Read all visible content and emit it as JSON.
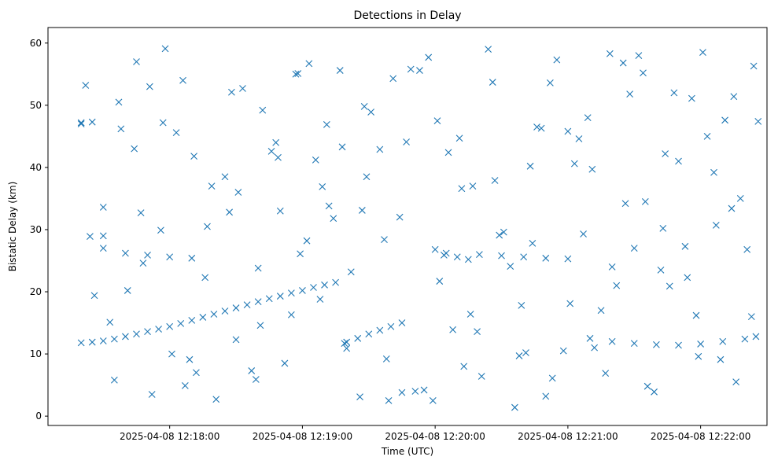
{
  "chart_data": {
    "type": "scatter",
    "title": "Detections in Delay",
    "xlabel": "Time (UTC)",
    "ylabel": "Bistatic Delay (km)",
    "x_unit": "UTC time",
    "x_tick_labels": [
      "2025-04-08 12:18:00",
      "2025-04-08 12:19:00",
      "2025-04-08 12:20:00",
      "2025-04-08 12:21:00",
      "2025-04-08 12:22:00"
    ],
    "x_ticks": [
      "12:18:00",
      "12:19:00",
      "12:20:00",
      "12:21:00",
      "12:22:00"
    ],
    "xlim": [
      "12:17:05",
      "12:22:30"
    ],
    "y_ticks": [
      0,
      10,
      20,
      30,
      40,
      50,
      60
    ],
    "ylim": [
      -1.5,
      62.5
    ],
    "marker": "x",
    "color": "#1f77b4",
    "grid": false,
    "legend": false,
    "series": [
      {
        "x": [
          "12:17:20",
          "12:17:25",
          "12:17:30",
          "12:17:35",
          "12:17:40",
          "12:17:45",
          "12:17:50",
          "12:17:55",
          "12:18:00",
          "12:18:05",
          "12:18:10",
          "12:18:15",
          "12:18:20",
          "12:18:25",
          "12:18:30",
          "12:18:35",
          "12:18:40",
          "12:18:45",
          "12:18:50",
          "12:18:55",
          "12:19:00",
          "12:19:05",
          "12:19:10",
          "12:19:15",
          "12:19:20",
          "12:19:25",
          "12:19:30",
          "12:19:35",
          "12:19:40",
          "12:19:45",
          "12:17:20",
          "12:17:30",
          "12:17:40",
          "12:17:50",
          "12:18:00",
          "12:18:10",
          "12:20:20",
          "12:20:30",
          "12:20:40",
          "12:20:50",
          "12:21:00",
          "12:21:10",
          "12:21:20",
          "12:21:30",
          "12:21:40",
          "12:21:50",
          "12:22:00",
          "12:22:10",
          "12:22:20",
          "12:22:25",
          "12:20:00",
          "12:20:05",
          "12:20:10",
          "12:20:15",
          "12:17:20",
          "12:17:25",
          "12:17:30",
          "12:17:22",
          "12:17:35",
          "12:17:45",
          "12:17:52",
          "12:18:03",
          "12:18:12",
          "12:18:25",
          "12:18:33",
          "12:18:41",
          "12:18:50",
          "12:18:58",
          "12:19:06",
          "12:19:14",
          "12:19:22",
          "12:19:31",
          "12:19:39",
          "12:19:47",
          "12:19:55",
          "12:20:04",
          "12:20:12",
          "12:20:21",
          "12:20:29",
          "12:20:38",
          "12:20:46",
          "12:20:55",
          "12:21:03",
          "12:21:12",
          "12:21:20",
          "12:21:28",
          "12:21:36",
          "12:21:44",
          "12:21:53",
          "12:22:01",
          "12:22:09",
          "12:22:18",
          "12:22:24",
          "12:17:26",
          "12:17:38",
          "12:17:48",
          "12:17:58",
          "12:18:07",
          "12:18:17",
          "12:18:28",
          "12:18:37",
          "12:18:46",
          "12:18:55",
          "12:19:03",
          "12:19:12",
          "12:19:20",
          "12:19:28",
          "12:19:37",
          "12:19:45",
          "12:19:53",
          "12:20:02",
          "12:20:11",
          "12:20:19",
          "12:20:27",
          "12:20:36",
          "12:20:44",
          "12:20:52",
          "12:21:01",
          "12:21:09",
          "12:21:17",
          "12:21:26",
          "12:21:34",
          "12:21:42",
          "12:21:50",
          "12:21:59",
          "12:22:07",
          "12:22:15",
          "12:22:23",
          "12:17:30",
          "12:17:41",
          "12:17:51",
          "12:18:01",
          "12:18:11",
          "12:18:21",
          "12:18:31",
          "12:18:42",
          "12:18:52",
          "12:19:02",
          "12:19:11",
          "12:19:19",
          "12:19:29",
          "12:19:41",
          "12:19:51",
          "12:20:01",
          "12:20:13",
          "12:20:24",
          "12:20:34",
          "12:20:43",
          "12:20:53",
          "12:21:05",
          "12:21:15",
          "12:21:25",
          "12:21:35",
          "12:21:46",
          "12:21:56",
          "12:22:06",
          "12:22:16",
          "12:17:33",
          "12:17:44",
          "12:17:56",
          "12:18:06",
          "12:18:16",
          "12:18:27",
          "12:18:39",
          "12:18:48",
          "12:18:59",
          "12:19:09",
          "12:19:17",
          "12:19:26",
          "12:19:35",
          "12:19:44",
          "12:19:57",
          "12:20:08",
          "12:20:17",
          "12:20:26",
          "12:20:39",
          "12:20:48",
          "12:20:58",
          "12:21:07",
          "12:21:19",
          "12:21:30",
          "12:21:39",
          "12:21:48",
          "12:21:58",
          "12:22:11",
          "12:22:21",
          "12:17:24",
          "12:17:37",
          "12:17:47",
          "12:17:57",
          "12:18:09",
          "12:18:19",
          "12:18:30",
          "12:18:40",
          "12:18:49",
          "12:18:57",
          "12:19:08",
          "12:19:18",
          "12:19:27",
          "12:19:38",
          "12:19:49",
          "12:19:59",
          "12:20:06",
          "12:20:16",
          "12:20:31",
          "12:20:41",
          "12:20:50",
          "12:21:00",
          "12:21:11",
          "12:21:22",
          "12:21:32",
          "12:21:43",
          "12:21:54",
          "12:22:03",
          "12:22:14",
          "12:22:26"
        ],
        "y": [
          11.8,
          11.9,
          12.1,
          12.4,
          12.8,
          13.2,
          13.6,
          14.0,
          14.4,
          14.9,
          15.4,
          15.9,
          16.4,
          16.9,
          17.4,
          17.9,
          18.4,
          18.9,
          19.3,
          19.8,
          20.2,
          20.7,
          21.1,
          21.5,
          11.9,
          12.5,
          13.2,
          13.8,
          14.4,
          15.0,
          47.2,
          27.0,
          26.2,
          25.9,
          25.6,
          25.4,
          26.0,
          25.8,
          25.6,
          25.4,
          25.3,
          12.5,
          12.0,
          11.7,
          11.5,
          11.4,
          11.6,
          12.0,
          12.4,
          12.8,
          26.8,
          26.2,
          25.6,
          25.2,
          47.0,
          47.3,
          29.0,
          53.2,
          5.8,
          57.0,
          3.5,
          45.6,
          7.0,
          38.5,
          52.7,
          14.6,
          33.0,
          55.1,
          41.2,
          31.8,
          23.2,
          48.9,
          2.5,
          44.1,
          4.2,
          25.9,
          36.6,
          6.4,
          29.1,
          9.7,
          46.5,
          57.3,
          40.6,
          11.0,
          24.0,
          51.8,
          4.8,
          42.2,
          27.3,
          58.5,
          9.1,
          35.0,
          56.3,
          19.4,
          46.2,
          24.6,
          59.1,
          4.9,
          30.5,
          52.1,
          7.3,
          42.6,
          16.3,
          56.7,
          33.8,
          10.9,
          49.8,
          28.4,
          3.8,
          55.6,
          21.7,
          44.7,
          13.6,
          37.9,
          1.4,
          27.8,
          53.6,
          18.1,
          48.0,
          6.9,
          34.2,
          55.2,
          23.5,
          41.0,
          9.6,
          30.7,
          51.4,
          16.0,
          33.6,
          20.2,
          53.0,
          10.0,
          41.8,
          2.7,
          36.0,
          49.2,
          8.5,
          28.2,
          46.9,
          11.7,
          38.5,
          54.3,
          4.0,
          47.5,
          8.0,
          59.0,
          24.1,
          40.2,
          6.1,
          44.6,
          17.0,
          56.8,
          34.5,
          20.9,
          51.1,
          39.2,
          5.5,
          15.1,
          43.0,
          29.9,
          54.0,
          22.3,
          32.8,
          5.9,
          44.0,
          26.1,
          36.9,
          55.6,
          3.1,
          42.9,
          32.0,
          57.7,
          13.9,
          37.0,
          53.7,
          17.8,
          46.3,
          10.5,
          29.3,
          58.3,
          27.0,
          3.9,
          52.0,
          16.2,
          47.6,
          26.8,
          28.9,
          50.5,
          32.7,
          47.2,
          9.1,
          37.0,
          12.3,
          23.8,
          41.6,
          55.0,
          18.8,
          43.3,
          33.1,
          9.2,
          55.8,
          2.5,
          42.4,
          16.4,
          29.6,
          10.2,
          3.2,
          45.8,
          39.7,
          21.0,
          58.0,
          30.2,
          22.3,
          45.0,
          33.4,
          47.4
        ]
      }
    ]
  }
}
